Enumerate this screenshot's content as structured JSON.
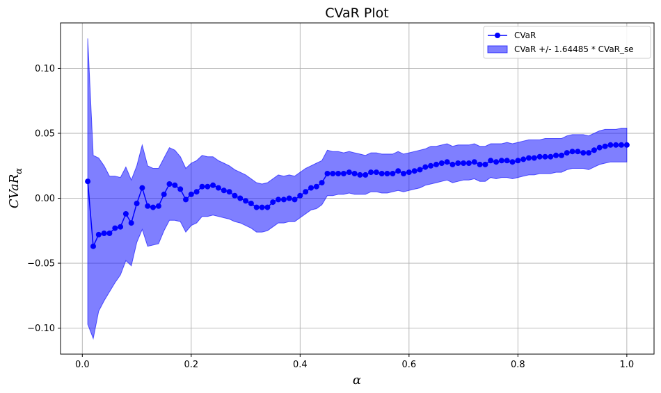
{
  "chart_data": {
    "type": "line",
    "title": "CVaR Plot",
    "xlabel": "α",
    "ylabel_base": "CVaR",
    "ylabel_sub": "α",
    "xlim": [
      -0.04,
      1.05
    ],
    "ylim": [
      -0.12,
      0.135
    ],
    "xticks": [
      0.0,
      0.2,
      0.4,
      0.6,
      0.8,
      1.0
    ],
    "xtick_labels": [
      "0.0",
      "0.2",
      "0.4",
      "0.6",
      "0.8",
      "1.0"
    ],
    "yticks": [
      -0.1,
      -0.05,
      0.0,
      0.05,
      0.1
    ],
    "ytick_labels": [
      "−0.10",
      "−0.05",
      "0.00",
      "0.05",
      "0.10"
    ],
    "grid": true,
    "legend_position": "top-right",
    "line_color": "#0000ff",
    "band_color": "#0000ff",
    "series": [
      {
        "name": "CVaR",
        "x": [
          0.01,
          0.02,
          0.03,
          0.04,
          0.05,
          0.06,
          0.07,
          0.08,
          0.09,
          0.1,
          0.11,
          0.12,
          0.13,
          0.14,
          0.15,
          0.16,
          0.17,
          0.18,
          0.19,
          0.2,
          0.21,
          0.22,
          0.23,
          0.24,
          0.25,
          0.26,
          0.27,
          0.28,
          0.29,
          0.3,
          0.31,
          0.32,
          0.33,
          0.34,
          0.35,
          0.36,
          0.37,
          0.38,
          0.39,
          0.4,
          0.41,
          0.42,
          0.43,
          0.44,
          0.45,
          0.46,
          0.47,
          0.48,
          0.49,
          0.5,
          0.51,
          0.52,
          0.53,
          0.54,
          0.55,
          0.56,
          0.57,
          0.58,
          0.59,
          0.6,
          0.61,
          0.62,
          0.63,
          0.64,
          0.65,
          0.66,
          0.67,
          0.68,
          0.69,
          0.7,
          0.71,
          0.72,
          0.73,
          0.74,
          0.75,
          0.76,
          0.77,
          0.78,
          0.79,
          0.8,
          0.81,
          0.82,
          0.83,
          0.84,
          0.85,
          0.86,
          0.87,
          0.88,
          0.89,
          0.9,
          0.91,
          0.92,
          0.93,
          0.94,
          0.95,
          0.96,
          0.97,
          0.98,
          0.99,
          1.0
        ],
        "y": [
          0.013,
          -0.037,
          -0.028,
          -0.027,
          -0.027,
          -0.023,
          -0.022,
          -0.012,
          -0.019,
          -0.004,
          0.008,
          -0.006,
          -0.007,
          -0.006,
          0.003,
          0.011,
          0.01,
          0.007,
          -0.001,
          0.003,
          0.005,
          0.009,
          0.009,
          0.01,
          0.008,
          0.006,
          0.005,
          0.002,
          0.0,
          -0.002,
          -0.004,
          -0.007,
          -0.007,
          -0.007,
          -0.003,
          -0.001,
          -0.001,
          0.0,
          -0.001,
          0.002,
          0.005,
          0.008,
          0.009,
          0.012,
          0.019,
          0.019,
          0.019,
          0.019,
          0.02,
          0.019,
          0.018,
          0.018,
          0.02,
          0.02,
          0.019,
          0.019,
          0.019,
          0.021,
          0.019,
          0.02,
          0.021,
          0.022,
          0.024,
          0.025,
          0.026,
          0.027,
          0.028,
          0.026,
          0.027,
          0.027,
          0.027,
          0.028,
          0.026,
          0.026,
          0.029,
          0.028,
          0.029,
          0.029,
          0.028,
          0.029,
          0.03,
          0.031,
          0.031,
          0.032,
          0.032,
          0.032,
          0.033,
          0.033,
          0.035,
          0.036,
          0.036,
          0.035,
          0.035,
          0.037,
          0.039,
          0.04,
          0.041,
          0.041,
          0.041,
          0.041
        ]
      },
      {
        "name": "CVaR +/- 1.64485 * CVaR_se",
        "type": "band",
        "x": [
          0.01,
          0.02,
          0.03,
          0.04,
          0.05,
          0.06,
          0.07,
          0.08,
          0.09,
          0.1,
          0.11,
          0.12,
          0.13,
          0.14,
          0.15,
          0.16,
          0.17,
          0.18,
          0.19,
          0.2,
          0.21,
          0.22,
          0.23,
          0.24,
          0.25,
          0.26,
          0.27,
          0.28,
          0.29,
          0.3,
          0.31,
          0.32,
          0.33,
          0.34,
          0.35,
          0.36,
          0.37,
          0.38,
          0.39,
          0.4,
          0.41,
          0.42,
          0.43,
          0.44,
          0.45,
          0.46,
          0.47,
          0.48,
          0.49,
          0.5,
          0.51,
          0.52,
          0.53,
          0.54,
          0.55,
          0.56,
          0.57,
          0.58,
          0.59,
          0.6,
          0.61,
          0.62,
          0.63,
          0.64,
          0.65,
          0.66,
          0.67,
          0.68,
          0.69,
          0.7,
          0.71,
          0.72,
          0.73,
          0.74,
          0.75,
          0.76,
          0.77,
          0.78,
          0.79,
          0.8,
          0.81,
          0.82,
          0.83,
          0.84,
          0.85,
          0.86,
          0.87,
          0.88,
          0.89,
          0.9,
          0.91,
          0.92,
          0.93,
          0.94,
          0.95,
          0.96,
          0.97,
          0.98,
          0.99,
          1.0
        ],
        "upper": [
          0.123,
          0.033,
          0.031,
          0.025,
          0.017,
          0.017,
          0.016,
          0.024,
          0.014,
          0.025,
          0.041,
          0.025,
          0.023,
          0.023,
          0.031,
          0.039,
          0.037,
          0.032,
          0.023,
          0.027,
          0.029,
          0.033,
          0.032,
          0.032,
          0.029,
          0.027,
          0.025,
          0.022,
          0.02,
          0.018,
          0.015,
          0.012,
          0.011,
          0.012,
          0.015,
          0.018,
          0.017,
          0.018,
          0.017,
          0.02,
          0.023,
          0.025,
          0.027,
          0.029,
          0.037,
          0.036,
          0.036,
          0.035,
          0.036,
          0.035,
          0.034,
          0.033,
          0.035,
          0.035,
          0.034,
          0.034,
          0.034,
          0.036,
          0.034,
          0.035,
          0.036,
          0.037,
          0.038,
          0.04,
          0.04,
          0.041,
          0.042,
          0.04,
          0.041,
          0.041,
          0.041,
          0.042,
          0.04,
          0.04,
          0.042,
          0.042,
          0.042,
          0.043,
          0.042,
          0.043,
          0.044,
          0.045,
          0.045,
          0.045,
          0.046,
          0.046,
          0.046,
          0.046,
          0.048,
          0.049,
          0.049,
          0.049,
          0.048,
          0.05,
          0.052,
          0.053,
          0.053,
          0.053,
          0.054,
          0.054
        ],
        "lower": [
          -0.097,
          -0.108,
          -0.087,
          -0.079,
          -0.072,
          -0.065,
          -0.059,
          -0.048,
          -0.052,
          -0.034,
          -0.024,
          -0.037,
          -0.036,
          -0.035,
          -0.025,
          -0.017,
          -0.017,
          -0.018,
          -0.026,
          -0.021,
          -0.019,
          -0.014,
          -0.014,
          -0.013,
          -0.014,
          -0.015,
          -0.016,
          -0.018,
          -0.019,
          -0.021,
          -0.023,
          -0.026,
          -0.026,
          -0.025,
          -0.022,
          -0.019,
          -0.019,
          -0.018,
          -0.018,
          -0.015,
          -0.012,
          -0.009,
          -0.008,
          -0.005,
          0.002,
          0.002,
          0.003,
          0.003,
          0.004,
          0.003,
          0.003,
          0.003,
          0.005,
          0.005,
          0.004,
          0.004,
          0.005,
          0.006,
          0.005,
          0.006,
          0.007,
          0.008,
          0.01,
          0.011,
          0.012,
          0.013,
          0.014,
          0.012,
          0.013,
          0.014,
          0.014,
          0.015,
          0.013,
          0.013,
          0.016,
          0.015,
          0.016,
          0.016,
          0.015,
          0.016,
          0.017,
          0.018,
          0.018,
          0.019,
          0.019,
          0.019,
          0.02,
          0.02,
          0.022,
          0.023,
          0.023,
          0.023,
          0.022,
          0.024,
          0.026,
          0.027,
          0.028,
          0.028,
          0.028,
          0.028
        ]
      }
    ]
  }
}
